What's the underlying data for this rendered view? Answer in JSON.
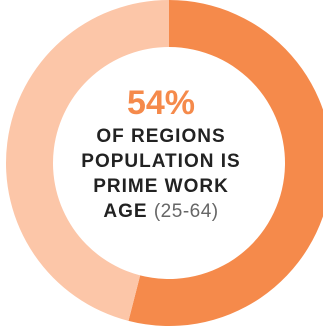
{
  "chart_data": {
    "type": "pie",
    "slices": [
      {
        "value": 54,
        "color": "#f58a4b"
      },
      {
        "value": 46,
        "color": "#fcc6a8"
      }
    ],
    "style": "donut",
    "title": "",
    "center_label": {
      "value_text": "54%",
      "line1": "OF REGIONS",
      "line2": "POPULATION IS",
      "line3": "PRIME WORK",
      "line4_bold": "AGE",
      "line4_light": "(25-64)"
    }
  },
  "colors": {
    "accent": "#f58a4b",
    "light": "#fcc6a8",
    "text": "#222222",
    "muted": "#666666"
  }
}
